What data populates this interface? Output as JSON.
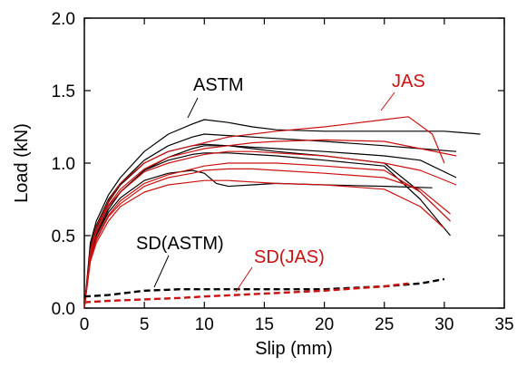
{
  "chart_data": {
    "type": "line",
    "title": "",
    "xlabel": "Slip (mm)",
    "ylabel": "Load (kN)",
    "xlim": [
      0,
      35
    ],
    "ylim": [
      0,
      2.0
    ],
    "x_ticks": [
      "0",
      "5",
      "10",
      "15",
      "20",
      "25",
      "30",
      "35"
    ],
    "y_ticks": [
      "0.0",
      "0.5",
      "1.0",
      "1.5",
      "2.0"
    ],
    "grid": false,
    "legend": "none",
    "colors": {
      "ASTM": "#000000",
      "JAS": "#cc1111"
    },
    "annotations": [
      {
        "text": "ASTM",
        "color": "#000000"
      },
      {
        "text": "JAS",
        "color": "#cc1111"
      },
      {
        "text": "SD(ASTM)",
        "color": "#000000"
      },
      {
        "text": "SD(JAS)",
        "color": "#cc1111"
      }
    ],
    "series": [
      {
        "group": "ASTM",
        "style": "solid",
        "x": [
          0,
          0.5,
          1,
          2,
          3,
          5,
          7,
          9,
          10,
          12,
          14,
          16,
          20,
          25,
          30,
          33
        ],
        "y": [
          0,
          0.45,
          0.6,
          0.78,
          0.9,
          1.08,
          1.2,
          1.27,
          1.3,
          1.28,
          1.25,
          1.23,
          1.22,
          1.22,
          1.22,
          1.2
        ]
      },
      {
        "group": "ASTM",
        "style": "solid",
        "x": [
          0,
          0.5,
          1,
          2,
          3,
          5,
          7,
          9,
          10,
          12,
          14,
          16,
          20,
          25,
          28,
          31
        ],
        "y": [
          0,
          0.42,
          0.57,
          0.75,
          0.86,
          1.02,
          1.12,
          1.18,
          1.2,
          1.19,
          1.18,
          1.17,
          1.15,
          1.12,
          1.1,
          1.08
        ]
      },
      {
        "group": "ASTM",
        "style": "solid",
        "x": [
          0,
          0.5,
          1,
          2,
          3,
          5,
          7,
          9,
          10,
          12,
          14,
          16,
          20,
          25,
          28,
          31
        ],
        "y": [
          0,
          0.38,
          0.52,
          0.7,
          0.8,
          0.95,
          1.04,
          1.1,
          1.12,
          1.12,
          1.11,
          1.1,
          1.08,
          1.05,
          1.02,
          0.9
        ]
      },
      {
        "group": "ASTM",
        "style": "solid",
        "x": [
          0,
          0.5,
          1,
          2,
          3,
          5,
          7,
          9,
          10,
          11,
          12,
          14,
          16,
          20,
          25,
          29
        ],
        "y": [
          0,
          0.36,
          0.5,
          0.66,
          0.76,
          0.88,
          0.93,
          0.95,
          0.93,
          0.86,
          0.84,
          0.85,
          0.86,
          0.85,
          0.84,
          0.83
        ]
      },
      {
        "group": "ASTM",
        "style": "solid",
        "x": [
          0,
          0.5,
          1,
          2,
          3,
          5,
          7,
          9,
          10,
          12,
          14,
          16,
          20,
          25,
          28,
          30.5
        ],
        "y": [
          0,
          0.4,
          0.55,
          0.73,
          0.85,
          1.0,
          1.08,
          1.12,
          1.13,
          1.12,
          1.1,
          1.08,
          1.05,
          1.0,
          0.8,
          0.6
        ]
      },
      {
        "group": "ASTM",
        "style": "solid",
        "x": [
          0,
          0.5,
          1,
          2,
          3,
          5,
          7,
          9,
          10,
          12,
          14,
          16,
          20,
          25,
          28,
          30.5
        ],
        "y": [
          0,
          0.37,
          0.51,
          0.68,
          0.8,
          0.95,
          1.02,
          1.06,
          1.07,
          1.07,
          1.06,
          1.05,
          1.02,
          0.98,
          0.75,
          0.5
        ]
      },
      {
        "group": "JAS",
        "style": "solid",
        "x": [
          0,
          0.5,
          1,
          2,
          3,
          5,
          7,
          9,
          10,
          12,
          14,
          16,
          20,
          25,
          27,
          29,
          30
        ],
        "y": [
          0,
          0.4,
          0.56,
          0.74,
          0.86,
          1.0,
          1.08,
          1.12,
          1.14,
          1.18,
          1.2,
          1.22,
          1.25,
          1.3,
          1.32,
          1.2,
          1.0
        ]
      },
      {
        "group": "JAS",
        "style": "solid",
        "x": [
          0,
          0.5,
          1,
          2,
          3,
          5,
          7,
          9,
          10,
          12,
          14,
          16,
          20,
          25,
          28,
          31
        ],
        "y": [
          0,
          0.38,
          0.53,
          0.71,
          0.82,
          0.96,
          1.04,
          1.08,
          1.1,
          1.12,
          1.14,
          1.15,
          1.16,
          1.15,
          1.1,
          1.05
        ]
      },
      {
        "group": "JAS",
        "style": "solid",
        "x": [
          0,
          0.5,
          1,
          2,
          3,
          5,
          7,
          9,
          10,
          12,
          14,
          16,
          20,
          25,
          28,
          30.5
        ],
        "y": [
          0,
          0.35,
          0.48,
          0.64,
          0.74,
          0.86,
          0.92,
          0.96,
          0.98,
          1.0,
          1.0,
          1.0,
          0.98,
          0.95,
          0.8,
          0.6
        ]
      },
      {
        "group": "JAS",
        "style": "solid",
        "x": [
          0,
          0.5,
          1,
          2,
          3,
          5,
          7,
          9,
          10,
          12,
          14,
          16,
          20,
          25,
          28,
          30
        ],
        "y": [
          0,
          0.32,
          0.45,
          0.6,
          0.7,
          0.8,
          0.85,
          0.87,
          0.88,
          0.88,
          0.87,
          0.86,
          0.85,
          0.82,
          0.7,
          0.55
        ]
      },
      {
        "group": "JAS",
        "style": "solid",
        "x": [
          0,
          0.5,
          1,
          2,
          3,
          5,
          7,
          9,
          10,
          12,
          14,
          16,
          20,
          25,
          28,
          31
        ],
        "y": [
          0,
          0.37,
          0.52,
          0.7,
          0.8,
          0.94,
          1.0,
          1.04,
          1.06,
          1.08,
          1.08,
          1.07,
          1.05,
          1.0,
          0.95,
          0.85
        ]
      },
      {
        "group": "JAS",
        "style": "solid",
        "x": [
          0,
          0.5,
          1,
          2,
          3,
          5,
          7,
          9,
          10,
          12,
          14,
          16,
          20,
          25,
          28,
          30.5
        ],
        "y": [
          0,
          0.34,
          0.47,
          0.63,
          0.72,
          0.84,
          0.9,
          0.93,
          0.95,
          0.96,
          0.96,
          0.95,
          0.93,
          0.9,
          0.82,
          0.65
        ]
      },
      {
        "group": "SD(ASTM)",
        "style": "dashed",
        "x": [
          0,
          2,
          5,
          8,
          10,
          15,
          20,
          25,
          28,
          30
        ],
        "y": [
          0.08,
          0.09,
          0.12,
          0.13,
          0.13,
          0.13,
          0.13,
          0.15,
          0.17,
          0.2
        ]
      },
      {
        "group": "SD(JAS)",
        "style": "dashed",
        "x": [
          0,
          2,
          5,
          8,
          10,
          15,
          20,
          25,
          27
        ],
        "y": [
          0.04,
          0.05,
          0.06,
          0.07,
          0.08,
          0.1,
          0.12,
          0.15,
          0.17
        ]
      }
    ]
  }
}
